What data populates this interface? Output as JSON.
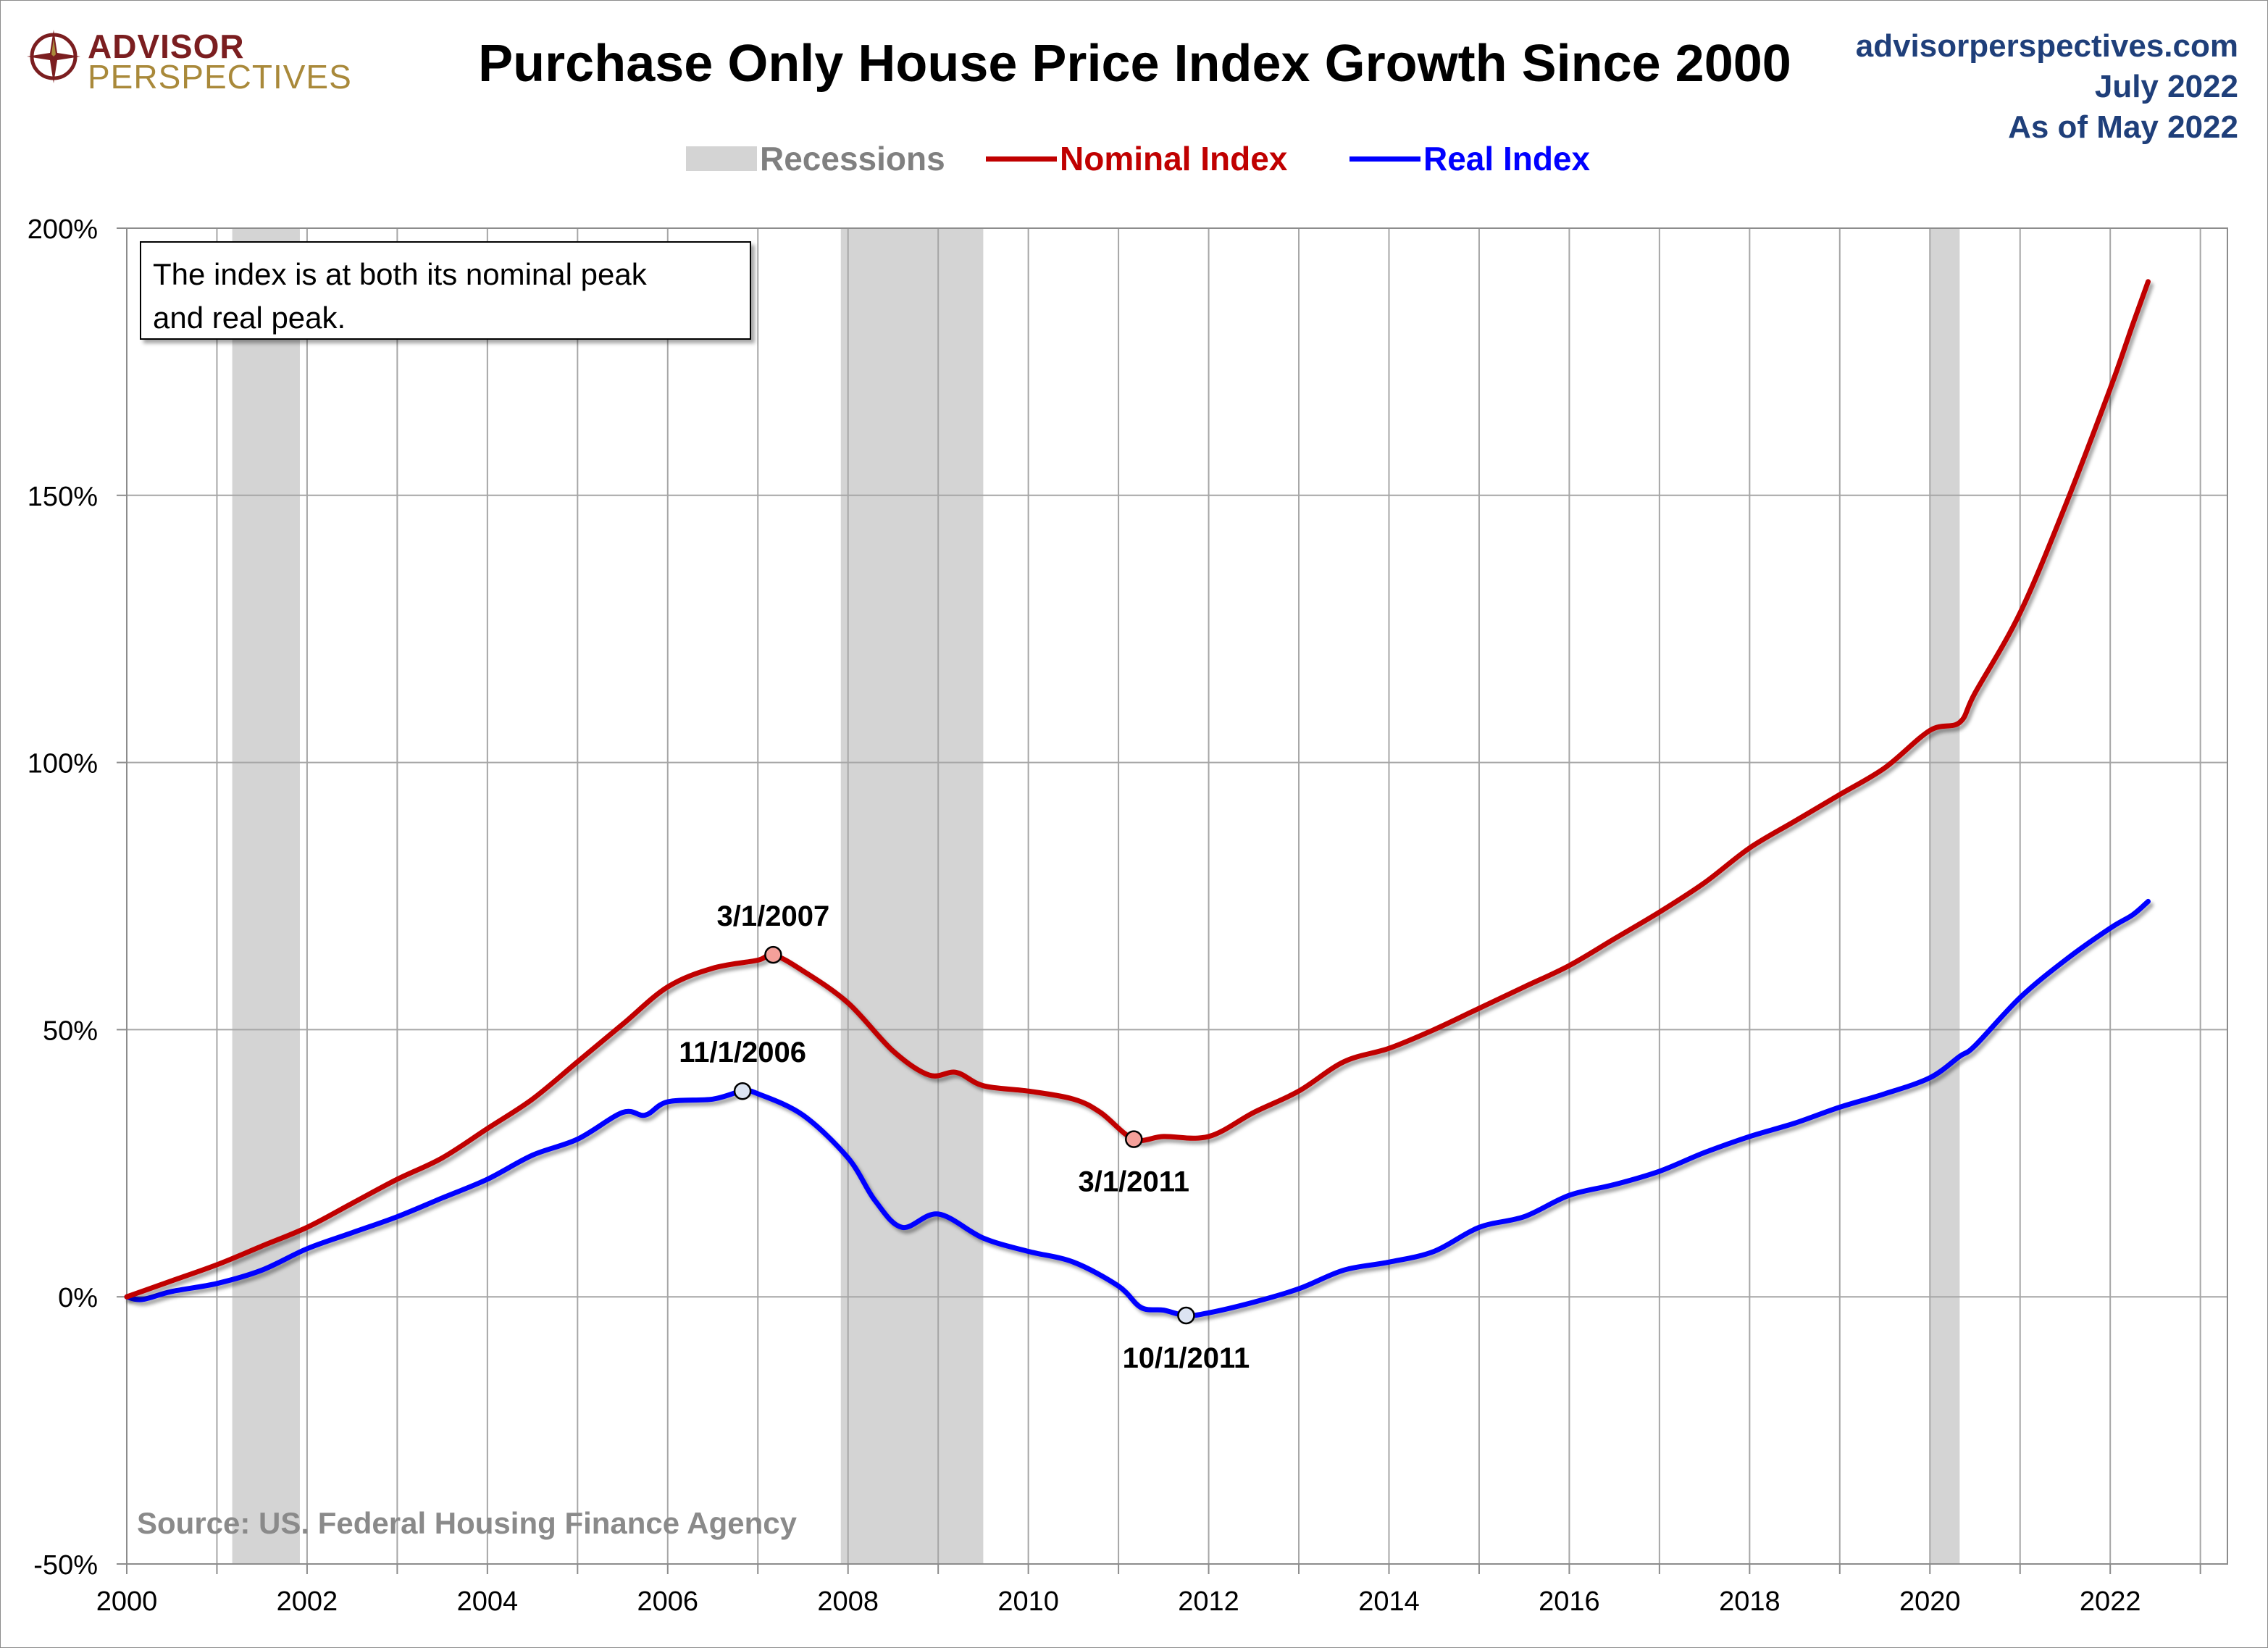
{
  "header": {
    "logo_line1": "ADVISOR",
    "logo_line2": "PERSPECTIVES",
    "title": "Purchase Only House Price Index Growth Since 2000",
    "site": "advisorperspectives.com",
    "date": "July 2022",
    "as_of": "As of May 2022"
  },
  "legend": {
    "recessions": "Recessions",
    "nominal": "Nominal Index",
    "real": "Real Index"
  },
  "note": {
    "line1": "The index is at both its nominal peak",
    "line2": "and real peak."
  },
  "source": "Source: US. Federal Housing Finance Agency",
  "colors": {
    "nominal": "#c00000",
    "real": "#0000ff",
    "recession": "#d4d4d4",
    "grid": "#a6a6a6",
    "info_text": "#1f3f7a"
  },
  "chart_data": {
    "type": "line",
    "title": "Purchase Only House Price Index Growth Since 2000",
    "x_unit": "year",
    "xlim": [
      2000,
      2023.3
    ],
    "ylim": [
      -50,
      200
    ],
    "x_ticks": [
      2000,
      2002,
      2004,
      2006,
      2008,
      2010,
      2012,
      2014,
      2016,
      2018,
      2020,
      2022
    ],
    "y_ticks": [
      -50,
      0,
      50,
      100,
      150,
      200
    ],
    "y_tick_labels": [
      "-50%",
      "0%",
      "50%",
      "100%",
      "150%",
      "200%"
    ],
    "grid": true,
    "legend_position": "top-center",
    "recessions": [
      {
        "start": 2001.17,
        "end": 2001.92
      },
      {
        "start": 2007.92,
        "end": 2009.5
      },
      {
        "start": 2020.0,
        "end": 2020.33
      }
    ],
    "series": [
      {
        "name": "Nominal Index",
        "color": "#c00000",
        "points": [
          [
            2000.0,
            0
          ],
          [
            2000.5,
            3
          ],
          [
            2001.0,
            6
          ],
          [
            2001.5,
            9.5
          ],
          [
            2002.0,
            13
          ],
          [
            2002.5,
            17.5
          ],
          [
            2003.0,
            22
          ],
          [
            2003.5,
            26
          ],
          [
            2004.0,
            31.5
          ],
          [
            2004.5,
            37
          ],
          [
            2005.0,
            44
          ],
          [
            2005.5,
            51
          ],
          [
            2006.0,
            58
          ],
          [
            2006.5,
            61.5
          ],
          [
            2007.0,
            63
          ],
          [
            2007.17,
            64
          ],
          [
            2007.5,
            61
          ],
          [
            2008.0,
            55
          ],
          [
            2008.5,
            46
          ],
          [
            2008.9,
            41.5
          ],
          [
            2009.2,
            42
          ],
          [
            2009.5,
            39.5
          ],
          [
            2010.0,
            38.5
          ],
          [
            2010.5,
            37
          ],
          [
            2010.8,
            34.5
          ],
          [
            2011.17,
            29.5
          ],
          [
            2011.5,
            30
          ],
          [
            2012.0,
            30
          ],
          [
            2012.5,
            34.5
          ],
          [
            2013.0,
            38.5
          ],
          [
            2013.5,
            44
          ],
          [
            2014.0,
            46.5
          ],
          [
            2014.5,
            50
          ],
          [
            2015.0,
            54
          ],
          [
            2015.5,
            58
          ],
          [
            2016.0,
            62
          ],
          [
            2016.5,
            67
          ],
          [
            2017.0,
            72
          ],
          [
            2017.5,
            77.5
          ],
          [
            2018.0,
            84
          ],
          [
            2018.5,
            89
          ],
          [
            2019.0,
            94
          ],
          [
            2019.5,
            99
          ],
          [
            2020.0,
            106
          ],
          [
            2020.33,
            107.5
          ],
          [
            2020.5,
            113
          ],
          [
            2021.0,
            128
          ],
          [
            2021.5,
            148
          ],
          [
            2022.0,
            170
          ],
          [
            2022.25,
            182
          ],
          [
            2022.42,
            190
          ]
        ]
      },
      {
        "name": "Real Index",
        "color": "#0000ff",
        "points": [
          [
            2000.0,
            0
          ],
          [
            2000.17,
            -0.5
          ],
          [
            2000.5,
            1
          ],
          [
            2001.0,
            2.5
          ],
          [
            2001.5,
            5
          ],
          [
            2002.0,
            9
          ],
          [
            2002.5,
            12
          ],
          [
            2003.0,
            15
          ],
          [
            2003.5,
            18.5
          ],
          [
            2004.0,
            22
          ],
          [
            2004.5,
            26.5
          ],
          [
            2005.0,
            29.5
          ],
          [
            2005.5,
            34.5
          ],
          [
            2005.75,
            34
          ],
          [
            2006.0,
            36.5
          ],
          [
            2006.5,
            37
          ],
          [
            2006.83,
            38.5
          ],
          [
            2007.0,
            38
          ],
          [
            2007.5,
            34
          ],
          [
            2008.0,
            26
          ],
          [
            2008.3,
            18
          ],
          [
            2008.6,
            13
          ],
          [
            2009.0,
            15.5
          ],
          [
            2009.5,
            11
          ],
          [
            2010.0,
            8.5
          ],
          [
            2010.5,
            6.5
          ],
          [
            2011.0,
            2
          ],
          [
            2011.25,
            -2
          ],
          [
            2011.5,
            -2.5
          ],
          [
            2011.75,
            -3.5
          ],
          [
            2012.0,
            -3
          ],
          [
            2012.5,
            -1
          ],
          [
            2013.0,
            1.5
          ],
          [
            2013.5,
            5
          ],
          [
            2014.0,
            6.5
          ],
          [
            2014.5,
            8.5
          ],
          [
            2015.0,
            13
          ],
          [
            2015.5,
            15
          ],
          [
            2016.0,
            19
          ],
          [
            2016.5,
            21
          ],
          [
            2017.0,
            23.5
          ],
          [
            2017.5,
            27
          ],
          [
            2018.0,
            30
          ],
          [
            2018.5,
            32.5
          ],
          [
            2019.0,
            35.5
          ],
          [
            2019.5,
            38
          ],
          [
            2020.0,
            41
          ],
          [
            2020.33,
            45
          ],
          [
            2020.5,
            47
          ],
          [
            2021.0,
            56
          ],
          [
            2021.5,
            63
          ],
          [
            2022.0,
            69
          ],
          [
            2022.25,
            71.5
          ],
          [
            2022.42,
            74
          ]
        ]
      }
    ],
    "annotations": [
      {
        "label": "3/1/2007",
        "series": "Nominal Index",
        "x": 2007.17,
        "y": 64,
        "position": "above"
      },
      {
        "label": "11/1/2006",
        "series": "Real Index",
        "x": 2006.83,
        "y": 38.5,
        "position": "above"
      },
      {
        "label": "3/1/2011",
        "series": "Nominal Index",
        "x": 2011.17,
        "y": 29.5,
        "position": "below"
      },
      {
        "label": "10/1/2011",
        "series": "Real Index",
        "x": 2011.75,
        "y": -3.5,
        "position": "below"
      }
    ]
  }
}
